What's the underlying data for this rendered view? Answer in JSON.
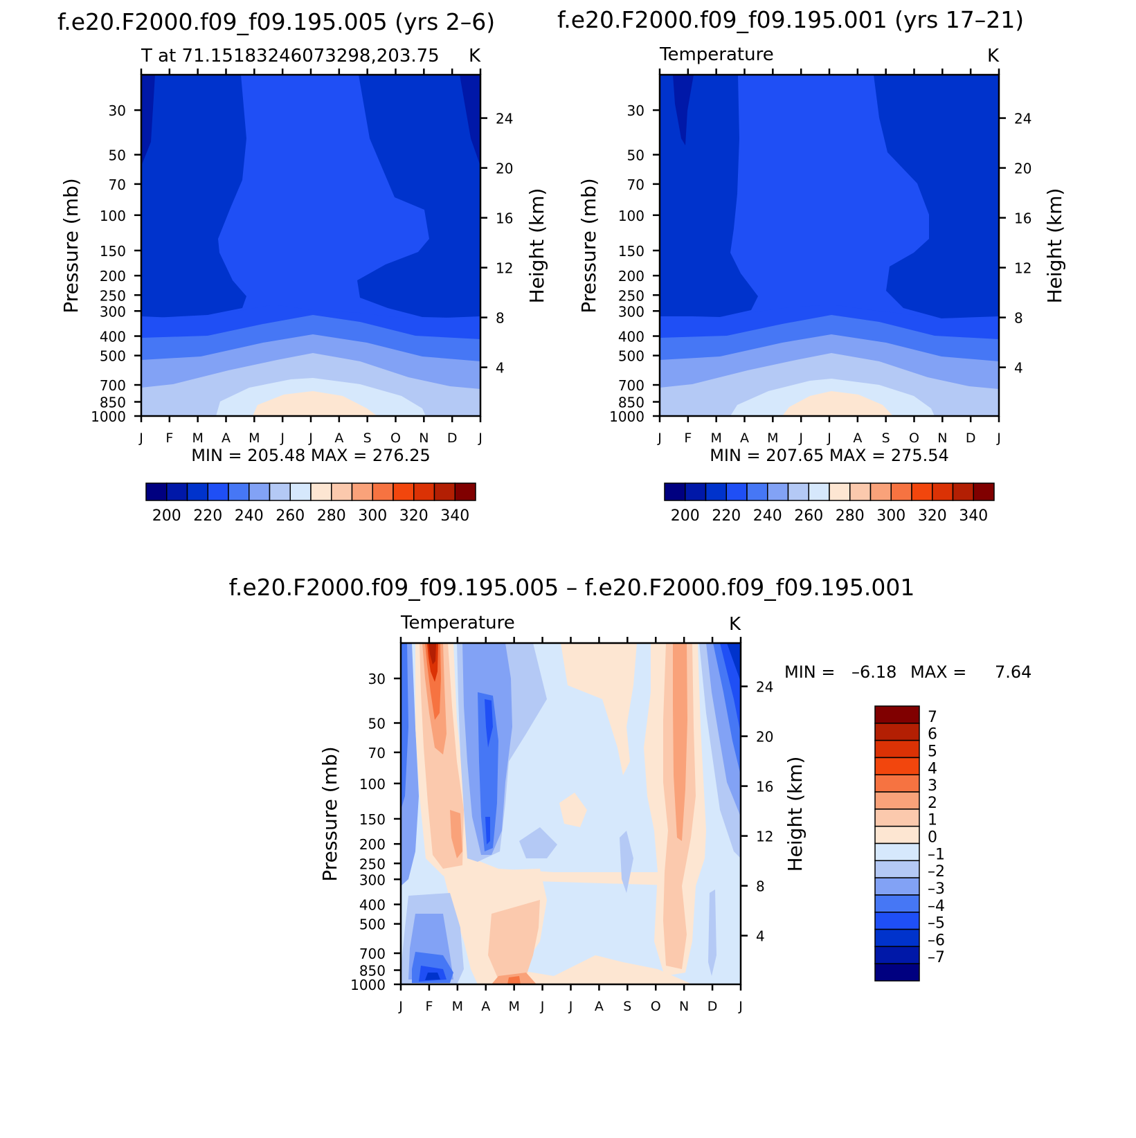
{
  "figure": {
    "colors": {
      "temperature_scale": [
        "#000080",
        "#0018A8",
        "#0033CC",
        "#1F4FF5",
        "#4677F5",
        "#82A2F5",
        "#B4C9F5",
        "#D6E8FC",
        "#FDE6D2",
        "#FBC9AD",
        "#F9A27A",
        "#F67341",
        "#F2460D",
        "#DB3205",
        "#B31F03",
        "#800000"
      ],
      "difference_scale": [
        "#000080",
        "#0018A8",
        "#0033CC",
        "#1F4FF5",
        "#4677F5",
        "#82A2F5",
        "#B4C9F5",
        "#D6E8FC",
        "#FDE6D2",
        "#FBC9AD",
        "#F9A27A",
        "#F67341",
        "#F2460D",
        "#DB3205",
        "#B31F03",
        "#800000"
      ]
    }
  },
  "chart_data": [
    {
      "type": "heatmap",
      "panel_title": "f.e20.F2000.f09_f09.195.005 (yrs 2–6)",
      "left_label": "T at 71.15183246073298,203.75",
      "units": "K",
      "xlabel": "",
      "ylabel": "Pressure (mb)",
      "ylabel_right": "Height (km)",
      "x_ticks": [
        "J",
        "F",
        "M",
        "A",
        "M",
        "J",
        "J",
        "A",
        "S",
        "O",
        "N",
        "D",
        "J"
      ],
      "y_ticks": [
        "30",
        "50",
        "70",
        "100",
        "150",
        "200",
        "250",
        "300",
        "400",
        "500",
        "700",
        "850",
        "1000"
      ],
      "y_ticks_right": [
        "24",
        "20",
        "16",
        "12",
        "8",
        "4"
      ],
      "ylim_mb": [
        1000,
        20
      ],
      "stats": "MIN = 205.48 MAX = 276.25",
      "min": 205.48,
      "max": 276.25,
      "colorbar": {
        "orientation": "horizontal",
        "levels_min": 190,
        "level_step": 10,
        "labels": [
          "200",
          "220",
          "240",
          "260",
          "280",
          "300",
          "320",
          "340"
        ]
      },
      "month_values_700mb": [
        262,
        262,
        263,
        265,
        267,
        270,
        272,
        270,
        267,
        264,
        262,
        262,
        262
      ]
    },
    {
      "type": "heatmap",
      "panel_title": "f.e20.F2000.f09_f09.195.001 (yrs 17–21)",
      "left_label": "Temperature",
      "units": "K",
      "xlabel": "",
      "ylabel": "Pressure (mb)",
      "ylabel_right": "Height (km)",
      "x_ticks": [
        "J",
        "F",
        "M",
        "A",
        "M",
        "J",
        "J",
        "A",
        "S",
        "O",
        "N",
        "D",
        "J"
      ],
      "y_ticks": [
        "30",
        "50",
        "70",
        "100",
        "150",
        "200",
        "250",
        "300",
        "400",
        "500",
        "700",
        "850",
        "1000"
      ],
      "y_ticks_right": [
        "24",
        "20",
        "16",
        "12",
        "8",
        "4"
      ],
      "ylim_mb": [
        1000,
        20
      ],
      "stats": "MIN = 207.65 MAX = 275.54",
      "min": 207.65,
      "max": 275.54,
      "colorbar": {
        "orientation": "horizontal",
        "levels_min": 190,
        "level_step": 10,
        "labels": [
          "200",
          "220",
          "240",
          "260",
          "280",
          "300",
          "320",
          "340"
        ]
      },
      "month_values_700mb": [
        262,
        262,
        263,
        265,
        268,
        270,
        272,
        270,
        267,
        264,
        262,
        262,
        262
      ]
    },
    {
      "type": "heatmap",
      "panel_title": "f.e20.F2000.f09_f09.195.005 – f.e20.F2000.f09_f09.195.001",
      "left_label": "Temperature",
      "units": "K",
      "xlabel": "",
      "ylabel": "Pressure (mb)",
      "ylabel_right": "Height (km)",
      "x_ticks": [
        "J",
        "F",
        "M",
        "A",
        "M",
        "J",
        "J",
        "A",
        "S",
        "O",
        "N",
        "D",
        "J"
      ],
      "y_ticks": [
        "30",
        "50",
        "70",
        "100",
        "150",
        "200",
        "250",
        "300",
        "400",
        "500",
        "700",
        "850",
        "1000"
      ],
      "y_ticks_right": [
        "24",
        "20",
        "16",
        "12",
        "8",
        "4"
      ],
      "ylim_mb": [
        1000,
        20
      ],
      "stats_prefix": "MIN =",
      "stats_min_text": "–6.18",
      "stats_mid": "MAX =",
      "stats_max_text": "7.64",
      "min": -6.18,
      "max": 7.64,
      "colorbar": {
        "orientation": "vertical",
        "levels_min": -8,
        "level_step": 1,
        "labels": [
          "7",
          "6",
          "5",
          "4",
          "3",
          "2",
          "1",
          "0",
          "–1",
          "–2",
          "–3",
          "–4",
          "–5",
          "–6",
          "–7"
        ]
      }
    }
  ]
}
